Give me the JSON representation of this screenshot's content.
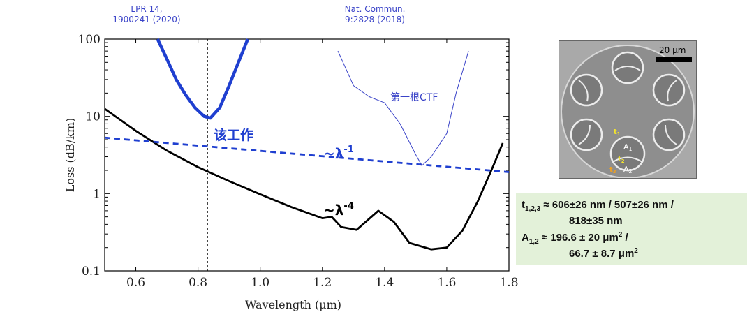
{
  "chart_data": {
    "type": "line",
    "xlabel": "Wavelength (μm)",
    "ylabel": "Loss (dB/km)",
    "xlim": [
      0.5,
      1.8
    ],
    "ylim": [
      0.1,
      100
    ],
    "yscale": "log",
    "xticks": [
      "0.6",
      "0.8",
      "1.0",
      "1.2",
      "1.4",
      "1.6",
      "1.8"
    ],
    "yticks": [
      "0.1",
      "1",
      "10",
      "100"
    ],
    "grid": false,
    "series": [
      {
        "name": "~λ-4",
        "color": "#000000",
        "x": [
          0.5,
          0.6,
          0.7,
          0.8,
          0.9,
          1.0,
          1.1,
          1.2,
          1.23,
          1.26,
          1.31,
          1.38,
          1.43,
          1.48,
          1.55,
          1.6,
          1.65,
          1.7,
          1.75,
          1.78
        ],
        "y": [
          12.5,
          6.5,
          3.6,
          2.2,
          1.45,
          0.98,
          0.67,
          0.48,
          0.5,
          0.37,
          0.34,
          0.6,
          0.43,
          0.23,
          0.19,
          0.2,
          0.33,
          0.8,
          2.3,
          4.5
        ]
      },
      {
        "name": "~λ-1",
        "color": "#1f3fd0",
        "x": [
          0.5,
          1.8
        ],
        "y": [
          5.3,
          1.9
        ]
      },
      {
        "name": "LPR 14, 1900241 (2020)",
        "color": "#1f3fd0",
        "x": [
          0.67,
          0.7,
          0.73,
          0.76,
          0.79,
          0.82,
          0.84,
          0.87,
          0.9,
          0.93,
          0.96
        ],
        "y": [
          100,
          55,
          30,
          19,
          13,
          10,
          9.5,
          13,
          25,
          50,
          100
        ]
      },
      {
        "name": "Nat. Commun. 9:2828 (2018)",
        "color": "#3a43c8",
        "x": [
          1.25,
          1.3,
          1.35,
          1.4,
          1.45,
          1.5,
          1.52,
          1.55,
          1.6,
          1.63,
          1.67
        ],
        "y": [
          70,
          25,
          18,
          15,
          8,
          3.2,
          2.3,
          3,
          6,
          20,
          70
        ]
      }
    ],
    "annotations": [
      "该工作",
      "~λ-1",
      "~λ-4",
      "第一根CTF"
    ],
    "marker_line_x": 0.83
  },
  "refs": {
    "lpr_line1": "LPR 14,",
    "lpr_line2": "1900241 (2020)",
    "nat_line1": "Nat. Commun.",
    "nat_line2": "9:2828 (2018)"
  },
  "labels": {
    "this_work": "该工作",
    "tilde_minus1": "~λ",
    "exp_minus1": "-1",
    "tilde_minus4": "~λ",
    "exp_minus4": "-4",
    "first_ctf": "第一根CTF"
  },
  "sem_image": {
    "scale_bar": "20 μm",
    "labels": {
      "t1": "t",
      "t1_sub": "1",
      "t2": "t",
      "t2_sub": "2",
      "t3": "t",
      "t3_sub": "3",
      "a1": "A",
      "a1_sub": "1",
      "a2": "A",
      "a2_sub": "2"
    }
  },
  "formula": {
    "t_symbol": "t",
    "t_sub": "1,2,3",
    "t_line1": " ≈ 606±26 nm / 507±26 nm /",
    "t_line2": "818±35 nm",
    "a_symbol": "A",
    "a_sub": "1,2",
    "a_line1_value": " ≈ 196.6 ± 20 μm",
    "a_line1_sup": "2",
    "a_line1_tail": " /",
    "a_line2_value": "66.7 ± 8.7 μm",
    "a_line2_sup": "2"
  }
}
